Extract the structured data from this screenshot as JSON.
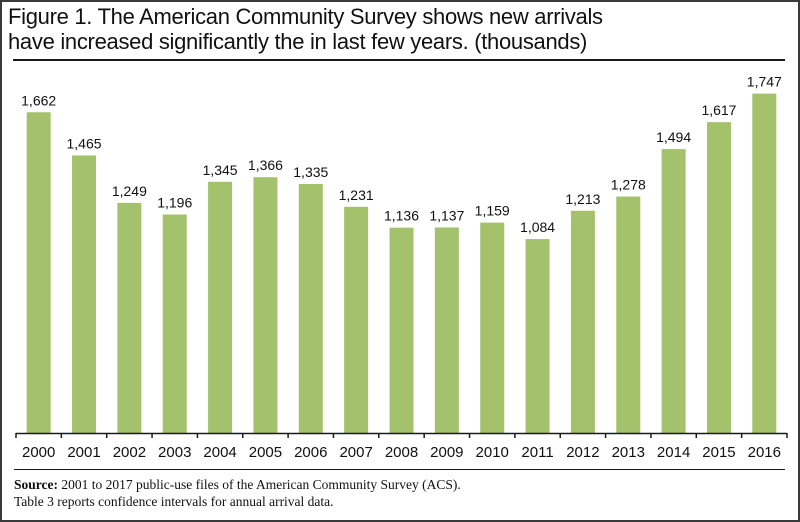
{
  "chart_data": {
    "type": "bar",
    "title": "Figure 1. The American Community Survey shows new arrivals have increased significantly the in last few years. (thousands)",
    "title_lines": [
      "Figure 1. The American Community Survey shows new arrivals",
      "have increased significantly the in last few years. (thousands)"
    ],
    "xlabel": "",
    "ylabel": "",
    "categories": [
      "2000",
      "2001",
      "2002",
      "2003",
      "2004",
      "2005",
      "2006",
      "2007",
      "2008",
      "2009",
      "2010",
      "2011",
      "2012",
      "2013",
      "2014",
      "2015",
      "2016"
    ],
    "values": [
      1662,
      1465,
      1249,
      1196,
      1345,
      1366,
      1335,
      1231,
      1136,
      1137,
      1159,
      1084,
      1213,
      1278,
      1494,
      1617,
      1747
    ],
    "value_labels": [
      "1,662",
      "1,465",
      "1,249",
      "1,196",
      "1,345",
      "1,366",
      "1,335",
      "1,231",
      "1,136",
      "1,137",
      "1,159",
      "1,084",
      "1,213",
      "1,278",
      "1,494",
      "1,617",
      "1,747"
    ],
    "ylim": [
      200,
      1800
    ],
    "grid": false,
    "y_axis_shown": false,
    "legend": "none",
    "bar_color": "#a3c26b"
  },
  "source": {
    "label": "Source:",
    "line1": "2001 to 2017 public-use files of the American Community  Survey (ACS).",
    "line2": "Table 3 reports confidence intervals for annual arrival data."
  }
}
